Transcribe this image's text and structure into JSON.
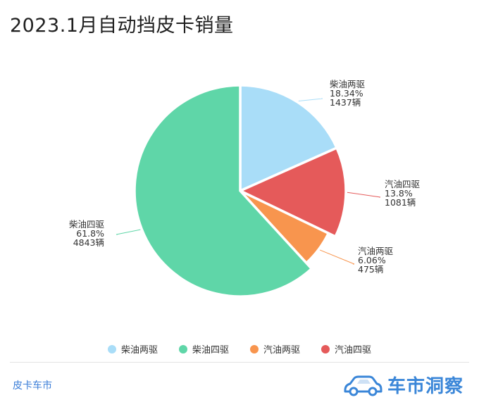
{
  "chart_data": {
    "type": "pie",
    "title": "2023.1月自动挡皮卡销量",
    "slices": [
      {
        "label": "柴油两驱",
        "percent_label": "18.34%",
        "count_label": "1437辆",
        "value": 1437,
        "color": "#a9ddf8"
      },
      {
        "label": "汽油四驱",
        "percent_label": "13.8%",
        "count_label": "1081辆",
        "value": 1081,
        "color": "#e55a5a"
      },
      {
        "label": "汽油两驱",
        "percent_label": "6.06%",
        "count_label": "475辆",
        "value": 475,
        "color": "#f8954e"
      },
      {
        "label": "柴油四驱",
        "percent_label": "61.8%",
        "count_label": "4843辆",
        "value": 4843,
        "color": "#5fd6a8"
      }
    ],
    "legend": [
      {
        "label": "柴油两驱",
        "color": "#a9ddf8"
      },
      {
        "label": "柴油四驱",
        "color": "#5fd6a8"
      },
      {
        "label": "汽油两驱",
        "color": "#f8954e"
      },
      {
        "label": "汽油四驱",
        "color": "#e55a5a"
      }
    ],
    "legend_position": "bottom"
  },
  "footer": {
    "source": "皮卡车市",
    "watermark": "车市洞察",
    "watermark_icon": "car-icon"
  }
}
